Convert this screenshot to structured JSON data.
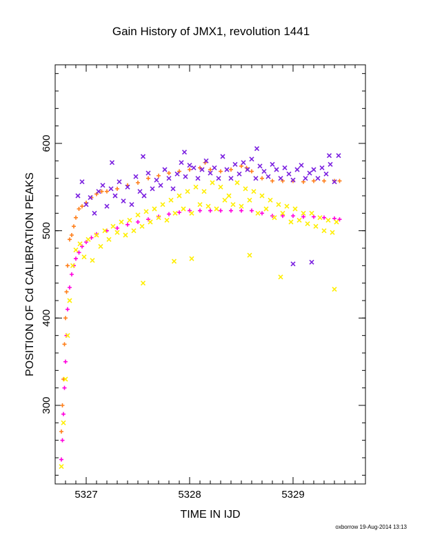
{
  "chart_data": {
    "type": "scatter",
    "title": "Gain History of JMX1, revolution 1441",
    "xlabel": "TIME IN IJD",
    "ylabel": "POSITION OF Cd CALIBRATION PEAKS",
    "xlim": [
      5326.7,
      5329.7
    ],
    "ylim": [
      210,
      690
    ],
    "xticks": [
      5327,
      5328,
      5329
    ],
    "yticks": [
      300,
      400,
      500,
      600
    ],
    "grid": false,
    "series": [
      {
        "color": "#ff7f1a",
        "marker": "plus",
        "x": [
          5326.76,
          5326.77,
          5326.78,
          5326.79,
          5326.8,
          5326.81,
          5326.82,
          5326.84,
          5326.86,
          5326.88,
          5326.9,
          5326.93,
          5326.96,
          5327.0,
          5327.05,
          5327.1,
          5327.15,
          5327.2,
          5327.3,
          5327.4,
          5327.5,
          5327.6,
          5327.7,
          5327.8,
          5327.9,
          5328.0,
          5328.1,
          5328.15,
          5328.2,
          5328.3,
          5328.4,
          5328.5,
          5328.55,
          5328.6,
          5328.7,
          5328.8,
          5328.9,
          5329.0,
          5329.1,
          5329.2,
          5329.3,
          5329.4,
          5329.45
        ],
        "y": [
          270,
          300,
          330,
          370,
          400,
          430,
          460,
          490,
          495,
          505,
          515,
          525,
          528,
          532,
          538,
          542,
          545,
          545,
          548,
          552,
          555,
          560,
          563,
          566,
          568,
          570,
          572,
          578,
          570,
          568,
          570,
          574,
          572,
          568,
          560,
          557,
          557,
          557,
          556,
          557,
          557,
          557,
          557
        ]
      },
      {
        "color": "#ff00dd",
        "marker": "plus",
        "x": [
          5326.76,
          5326.77,
          5326.78,
          5326.79,
          5326.8,
          5326.81,
          5326.82,
          5326.84,
          5326.86,
          5326.88,
          5326.9,
          5326.93,
          5326.96,
          5327.0,
          5327.05,
          5327.1,
          5327.2,
          5327.3,
          5327.4,
          5327.5,
          5327.6,
          5327.7,
          5327.8,
          5327.9,
          5328.0,
          5328.1,
          5328.2,
          5328.3,
          5328.4,
          5328.5,
          5328.6,
          5328.7,
          5328.8,
          5328.9,
          5329.0,
          5329.1,
          5329.2,
          5329.3,
          5329.4,
          5329.45
        ],
        "y": [
          238,
          260,
          290,
          320,
          350,
          380,
          410,
          435,
          450,
          460,
          468,
          475,
          482,
          487,
          492,
          496,
          500,
          503,
          507,
          510,
          513,
          516,
          519,
          521,
          523,
          523,
          523,
          523,
          523,
          523,
          523,
          520,
          517,
          517,
          517,
          516,
          516,
          515,
          514,
          513
        ]
      },
      {
        "color": "#7a1fe0",
        "marker": "x",
        "x": [
          5326.92,
          5326.96,
          5327.0,
          5327.04,
          5327.08,
          5327.12,
          5327.16,
          5327.2,
          5327.24,
          5327.28,
          5327.32,
          5327.36,
          5327.4,
          5327.44,
          5327.48,
          5327.52,
          5327.56,
          5327.6,
          5327.64,
          5327.68,
          5327.72,
          5327.76,
          5327.8,
          5327.84,
          5327.88,
          5327.92,
          5327.96,
          5328.0,
          5328.04,
          5328.08,
          5328.12,
          5328.16,
          5328.2,
          5328.24,
          5328.28,
          5328.32,
          5328.36,
          5328.4,
          5328.44,
          5328.48,
          5328.52,
          5328.56,
          5328.6,
          5328.64,
          5328.68,
          5328.72,
          5328.76,
          5328.8,
          5328.84,
          5328.88,
          5328.92,
          5328.96,
          5329.0,
          5329.04,
          5329.08,
          5329.12,
          5329.16,
          5329.2,
          5329.24,
          5329.28,
          5329.32,
          5329.36,
          5329.4,
          5329.44,
          5327.25,
          5327.55,
          5327.95,
          5328.65,
          5329.35,
          5329.0,
          5329.18
        ],
        "y": [
          540,
          556,
          530,
          538,
          520,
          545,
          552,
          528,
          548,
          540,
          556,
          534,
          550,
          530,
          562,
          545,
          540,
          566,
          548,
          558,
          552,
          570,
          560,
          548,
          565,
          578,
          562,
          575,
          572,
          560,
          570,
          580,
          566,
          572,
          560,
          585,
          570,
          560,
          576,
          565,
          578,
          570,
          582,
          560,
          574,
          568,
          562,
          576,
          570,
          560,
          572,
          565,
          558,
          570,
          575,
          560,
          566,
          570,
          560,
          572,
          565,
          576,
          556,
          586,
          578,
          585,
          590,
          594,
          586,
          462,
          464
        ]
      },
      {
        "color": "#ffee00",
        "marker": "x",
        "x": [
          5326.76,
          5326.78,
          5326.8,
          5326.82,
          5326.84,
          5326.87,
          5326.9,
          5326.94,
          5326.98,
          5327.02,
          5327.06,
          5327.1,
          5327.14,
          5327.18,
          5327.22,
          5327.26,
          5327.3,
          5327.34,
          5327.38,
          5327.42,
          5327.46,
          5327.5,
          5327.54,
          5327.58,
          5327.62,
          5327.66,
          5327.7,
          5327.74,
          5327.78,
          5327.82,
          5327.86,
          5327.9,
          5327.94,
          5327.98,
          5328.02,
          5328.06,
          5328.1,
          5328.14,
          5328.18,
          5328.22,
          5328.26,
          5328.3,
          5328.34,
          5328.38,
          5328.42,
          5328.46,
          5328.5,
          5328.54,
          5328.58,
          5328.62,
          5328.66,
          5328.7,
          5328.74,
          5328.78,
          5328.82,
          5328.86,
          5328.9,
          5328.94,
          5328.98,
          5329.02,
          5329.06,
          5329.1,
          5329.14,
          5329.18,
          5329.22,
          5329.26,
          5329.3,
          5329.34,
          5329.38,
          5329.42,
          5327.55,
          5328.02,
          5328.58,
          5328.88,
          5329.4,
          5327.85
        ],
        "y": [
          230,
          280,
          330,
          380,
          420,
          460,
          478,
          485,
          470,
          490,
          466,
          495,
          482,
          500,
          490,
          505,
          498,
          510,
          495,
          512,
          500,
          518,
          505,
          522,
          510,
          525,
          515,
          530,
          512,
          535,
          520,
          540,
          525,
          545,
          520,
          550,
          530,
          545,
          528,
          555,
          525,
          550,
          535,
          540,
          530,
          555,
          528,
          548,
          535,
          545,
          520,
          540,
          525,
          535,
          515,
          530,
          520,
          528,
          510,
          525,
          512,
          520,
          508,
          520,
          505,
          515,
          500,
          512,
          498,
          510,
          440,
          468,
          472,
          447,
          433,
          465
        ]
      }
    ]
  },
  "footer": "oxborrow 19-Aug-2014 13:13"
}
